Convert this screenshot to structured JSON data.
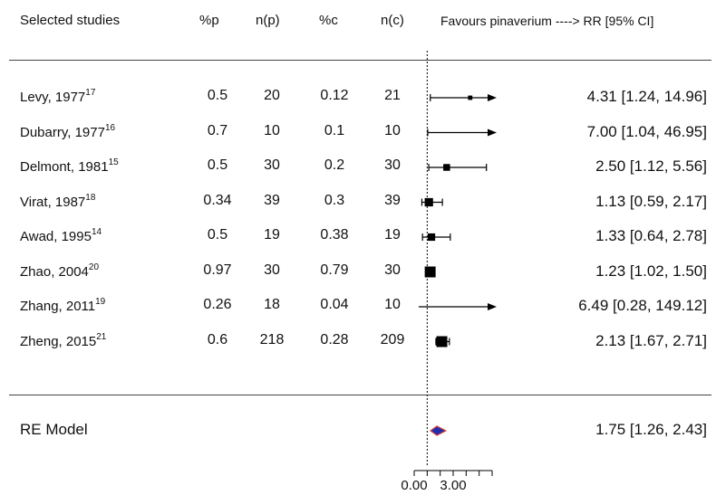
{
  "headers": {
    "study": "Selected studies",
    "pp": "%p",
    "np": "n(p)",
    "pc": "%c",
    "nc": "n(c)",
    "effect": "Favours pinaverium ----> RR [95% CI]"
  },
  "chart_data": {
    "type": "forest",
    "studies": [
      {
        "name": "Levy, 1977",
        "ref": "17",
        "pp": "0.5",
        "np": "20",
        "pc": "0.12",
        "nc": "21",
        "rr": 4.31,
        "lo": 1.24,
        "hi": 14.96,
        "ci_text": "4.31 [1.24,  14.96]"
      },
      {
        "name": "Dubarry, 1977",
        "ref": "16",
        "pp": "0.7",
        "np": "10",
        "pc": "0.1",
        "nc": "10",
        "rr": 7.0,
        "lo": 1.04,
        "hi": 46.95,
        "ci_text": "7.00 [1.04,  46.95]"
      },
      {
        "name": "Delmont, 1981",
        "ref": "15",
        "pp": "0.5",
        "np": "30",
        "pc": "0.2",
        "nc": "30",
        "rr": 2.5,
        "lo": 1.12,
        "hi": 5.56,
        "ci_text": "2.50 [1.12,   5.56]"
      },
      {
        "name": "Virat, 1987",
        "ref": "18",
        "pp": "0.34",
        "np": "39",
        "pc": "0.3",
        "nc": "39",
        "rr": 1.13,
        "lo": 0.59,
        "hi": 2.17,
        "ci_text": "1.13 [0.59,   2.17]"
      },
      {
        "name": "Awad, 1995",
        "ref": "14",
        "pp": "0.5",
        "np": "19",
        "pc": "0.38",
        "nc": "19",
        "rr": 1.33,
        "lo": 0.64,
        "hi": 2.78,
        "ci_text": "1.33 [0.64,   2.78]"
      },
      {
        "name": "Zhao, 2004",
        "ref": "20",
        "pp": "0.97",
        "np": "30",
        "pc": "0.79",
        "nc": "30",
        "rr": 1.23,
        "lo": 1.02,
        "hi": 1.5,
        "ci_text": "1.23 [1.02,   1.50]"
      },
      {
        "name": "Zhang, 2011",
        "ref": "19",
        "pp": "0.26",
        "np": "18",
        "pc": "0.04",
        "nc": "10",
        "rr": 6.49,
        "lo": 0.28,
        "hi": 149.12,
        "ci_text": "6.49 [0.28, 149.12]"
      },
      {
        "name": "Zheng, 2015",
        "ref": "21",
        "pp": "0.6",
        "np": "218",
        "pc": "0.28",
        "nc": "209",
        "rr": 2.13,
        "lo": 1.67,
        "hi": 2.71,
        "ci_text": "2.13 [1.67,   2.71]"
      }
    ],
    "summary": {
      "name": "RE Model",
      "rr": 1.75,
      "lo": 1.26,
      "hi": 2.43,
      "ci_text": "1.75 [1.26,   2.43]"
    },
    "reference_line": 1,
    "xlim": [
      0,
      6
    ],
    "x_ticks": [
      0,
      1,
      2,
      3,
      4,
      5,
      6
    ],
    "x_tick_labels": [
      "0.00",
      "",
      "",
      "3.00",
      "",
      "",
      ""
    ],
    "summary_color": "#1f2fb0",
    "summary_edge_color": "#d23a3a"
  }
}
